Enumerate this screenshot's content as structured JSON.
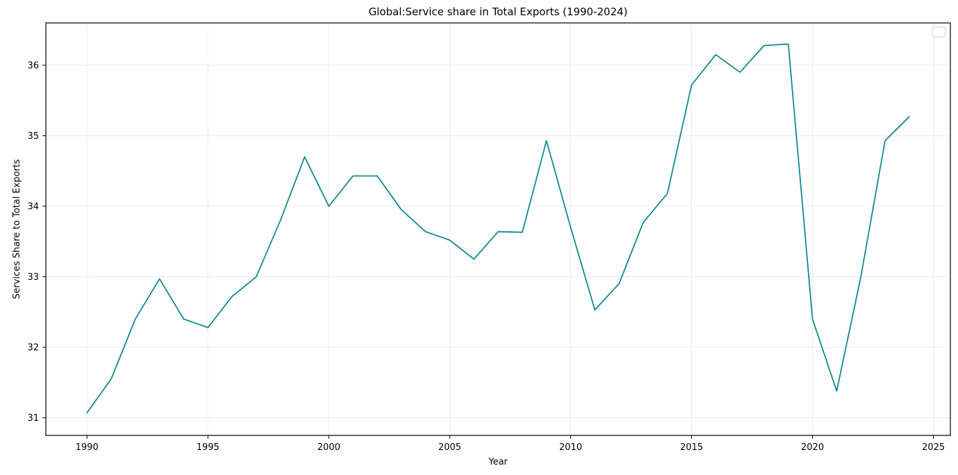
{
  "chart_data": {
    "type": "line",
    "title": "Global:Service share in Total Exports (1990-2024)",
    "xlabel": "Year",
    "ylabel": "Services Share to Total Exports",
    "x": [
      1990,
      1991,
      1992,
      1993,
      1994,
      1995,
      1996,
      1997,
      1998,
      1999,
      2000,
      2001,
      2002,
      2003,
      2004,
      2005,
      2006,
      2007,
      2008,
      2009,
      2010,
      2011,
      2012,
      2013,
      2014,
      2015,
      2016,
      2017,
      2018,
      2019,
      2020,
      2021,
      2022,
      2023,
      2024
    ],
    "series": [
      {
        "name": "",
        "color": "#108a8f",
        "values": [
          31.07,
          31.55,
          32.4,
          32.97,
          32.4,
          32.28,
          32.72,
          33.0,
          33.8,
          34.7,
          34.0,
          34.43,
          34.43,
          33.95,
          33.64,
          33.52,
          33.25,
          33.64,
          33.63,
          34.93,
          33.7,
          32.53,
          32.9,
          33.77,
          34.18,
          35.72,
          36.15,
          35.9,
          36.28,
          36.3,
          32.4,
          31.38,
          33.0,
          34.93,
          35.27
        ]
      }
    ],
    "xlim": [
      1988.3,
      2025.7
    ],
    "ylim": [
      30.75,
      36.6
    ],
    "xticks": [
      1990,
      1995,
      2000,
      2005,
      2010,
      2015,
      2020,
      2025
    ],
    "yticks": [
      31,
      32,
      33,
      34,
      35,
      36
    ],
    "grid": true,
    "grid_color": "#e6e6e6",
    "axis_color": "#000000",
    "legend": {
      "visible": true,
      "position": "top-right",
      "entries": []
    }
  }
}
